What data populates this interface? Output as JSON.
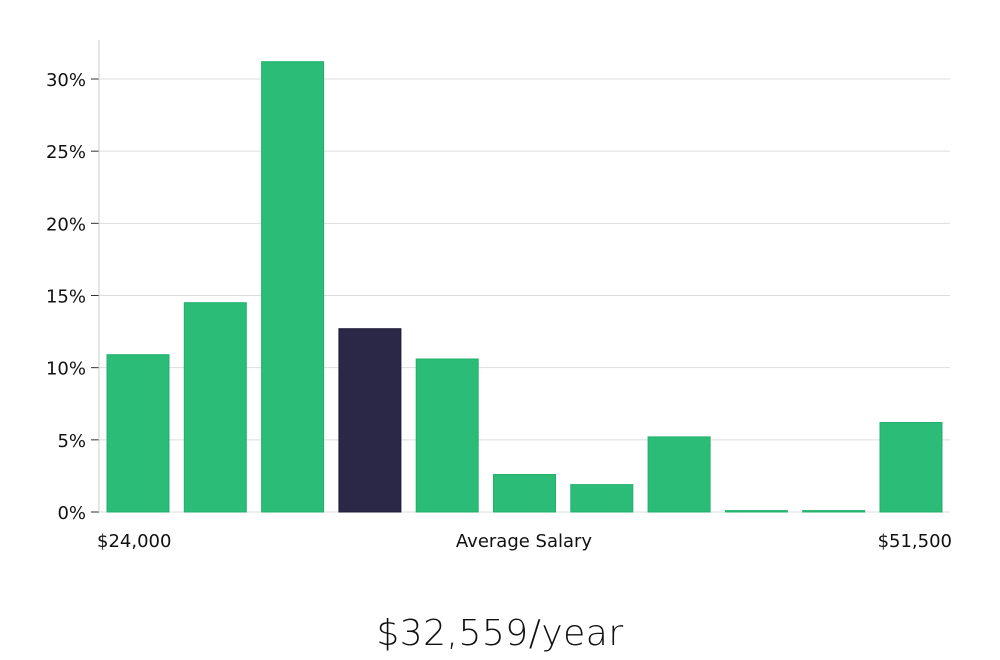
{
  "chart_data": {
    "type": "bar",
    "ylabel_ticks": [
      "0%",
      "5%",
      "10%",
      "15%",
      "20%",
      "25%",
      "30%"
    ],
    "ylim": [
      0,
      32.5
    ],
    "ytick_values": [
      0,
      5,
      10,
      15,
      20,
      25,
      30
    ],
    "values": [
      10.9,
      14.5,
      31.2,
      12.7,
      10.6,
      2.6,
      1.9,
      5.2,
      0.1,
      0.1,
      6.2
    ],
    "highlight_index": 3,
    "colors": {
      "bar": "#2bbd77",
      "highlight": "#2a2747",
      "grid": "#dddddd",
      "axis": "#cccccc"
    },
    "x_left_label": "$24,000",
    "x_center_label": "Average Salary",
    "x_right_label": "$51,500"
  },
  "salary": {
    "value_text": "$32,559/year"
  }
}
